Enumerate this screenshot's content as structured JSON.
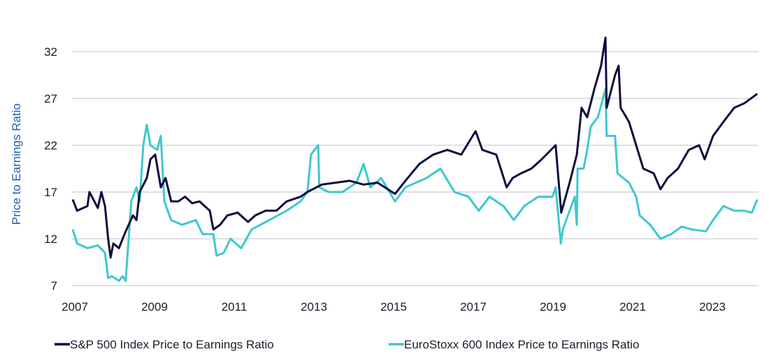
{
  "chart_data": {
    "type": "line",
    "title": "",
    "xlabel": "",
    "ylabel": "Price to Earnings Ratio",
    "xlim": [
      2007,
      2024.25
    ],
    "ylim": [
      7,
      34
    ],
    "x_ticks": [
      "2007",
      "2009",
      "2011",
      "2013",
      "2015",
      "2017",
      "2019",
      "2021",
      "2023"
    ],
    "y_ticks": [
      "7",
      "12",
      "17",
      "22",
      "27",
      "32"
    ],
    "grid": "horizontal",
    "legend_position": "bottom",
    "colors": {
      "ylabel": "#1f5fae",
      "grid": "#c9cdd5"
    },
    "series": [
      {
        "name": "S&P 500 Index Price to Earnings Ratio",
        "color": "#0d0d3d",
        "x": [
          2007.0,
          2007.11,
          2007.37,
          2007.42,
          2007.63,
          2007.72,
          2007.81,
          2007.89,
          2007.95,
          2008.02,
          2008.16,
          2008.3,
          2008.51,
          2008.6,
          2008.68,
          2008.86,
          2008.95,
          2009.07,
          2009.21,
          2009.33,
          2009.47,
          2009.65,
          2009.82,
          2010.0,
          2010.18,
          2010.44,
          2010.53,
          2010.7,
          2010.88,
          2011.14,
          2011.4,
          2011.58,
          2011.84,
          2012.11,
          2012.37,
          2012.72,
          2012.89,
          2013.25,
          2013.6,
          2013.95,
          2014.3,
          2014.65,
          2015.09,
          2015.35,
          2015.7,
          2016.05,
          2016.4,
          2016.75,
          2017.11,
          2017.28,
          2017.63,
          2017.89,
          2018.04,
          2018.25,
          2018.51,
          2018.77,
          2019.12,
          2019.26,
          2019.47,
          2019.65,
          2019.77,
          2019.91,
          2020.09,
          2020.26,
          2020.37,
          2020.4,
          2020.61,
          2020.7,
          2020.75,
          2020.96,
          2021.14,
          2021.32,
          2021.58,
          2021.75,
          2021.93,
          2022.19,
          2022.46,
          2022.72,
          2022.86,
          2023.07,
          2023.33,
          2023.6,
          2023.86,
          2024.18
        ],
        "y": [
          16.2,
          15.0,
          15.5,
          17.0,
          15.3,
          17.0,
          15.5,
          12.0,
          10.0,
          11.5,
          11.0,
          12.5,
          14.5,
          14.0,
          17.0,
          18.5,
          20.5,
          21.0,
          17.5,
          18.5,
          16.0,
          16.0,
          16.5,
          15.8,
          16.0,
          15.0,
          13.0,
          13.5,
          14.5,
          14.8,
          13.8,
          14.5,
          15.0,
          15.0,
          16.0,
          16.5,
          17.0,
          17.8,
          18.0,
          18.2,
          17.8,
          18.0,
          16.8,
          18.2,
          20.0,
          21.0,
          21.5,
          21.0,
          23.5,
          21.5,
          21.0,
          17.5,
          18.5,
          19.0,
          19.5,
          20.5,
          22.0,
          14.8,
          18.0,
          21.0,
          26.0,
          25.0,
          28.0,
          30.5,
          33.5,
          26.0,
          29.5,
          30.5,
          26.0,
          24.5,
          22.0,
          19.5,
          19.0,
          17.3,
          18.5,
          19.5,
          21.5,
          22.0,
          20.5,
          23.0,
          24.5,
          26.0,
          26.5,
          27.5
        ]
      },
      {
        "name": "EuroStoxx 600 Index Price to Earnings Ratio",
        "color": "#3ec8cc",
        "x": [
          2007.0,
          2007.11,
          2007.37,
          2007.63,
          2007.81,
          2007.89,
          2007.98,
          2008.16,
          2008.25,
          2008.33,
          2008.47,
          2008.6,
          2008.68,
          2008.77,
          2008.86,
          2008.95,
          2009.12,
          2009.21,
          2009.3,
          2009.47,
          2009.74,
          2010.09,
          2010.26,
          2010.53,
          2010.61,
          2010.79,
          2010.96,
          2011.23,
          2011.49,
          2011.84,
          2012.37,
          2012.72,
          2012.89,
          2012.98,
          2013.16,
          2013.19,
          2013.42,
          2013.77,
          2014.12,
          2014.3,
          2014.47,
          2014.74,
          2015.09,
          2015.35,
          2015.88,
          2016.23,
          2016.58,
          2016.93,
          2017.19,
          2017.46,
          2017.81,
          2018.07,
          2018.33,
          2018.68,
          2019.04,
          2019.12,
          2019.25,
          2019.3,
          2019.47,
          2019.6,
          2019.65,
          2019.67,
          2019.82,
          2019.91,
          2020.0,
          2020.18,
          2020.37,
          2020.4,
          2020.61,
          2020.67,
          2020.96,
          2021.14,
          2021.23,
          2021.49,
          2021.75,
          2022.02,
          2022.28,
          2022.54,
          2022.89,
          2023.07,
          2023.33,
          2023.6,
          2023.86,
          2024.04,
          2024.18
        ],
        "y": [
          13.0,
          11.5,
          11.0,
          11.3,
          10.5,
          7.8,
          8.0,
          7.5,
          8.0,
          7.5,
          16.0,
          17.5,
          16.0,
          22.0,
          24.2,
          22.0,
          21.5,
          23.0,
          16.0,
          14.0,
          13.5,
          14.0,
          12.5,
          12.5,
          10.2,
          10.5,
          12.0,
          11.0,
          13.0,
          13.8,
          15.0,
          16.0,
          17.0,
          21.0,
          22.0,
          17.5,
          17.0,
          17.0,
          18.0,
          20.0,
          17.5,
          18.5,
          16.0,
          17.5,
          18.5,
          19.5,
          17.0,
          16.5,
          15.0,
          16.5,
          15.5,
          14.0,
          15.5,
          16.5,
          16.5,
          17.5,
          11.5,
          13.0,
          15.0,
          16.5,
          13.5,
          19.5,
          19.5,
          21.5,
          24.0,
          25.0,
          28.0,
          23.0,
          23.0,
          19.0,
          18.0,
          16.5,
          14.5,
          13.5,
          12.0,
          12.5,
          13.3,
          13.0,
          12.8,
          14.0,
          15.5,
          15.0,
          15.0,
          14.8,
          16.2
        ]
      }
    ]
  }
}
